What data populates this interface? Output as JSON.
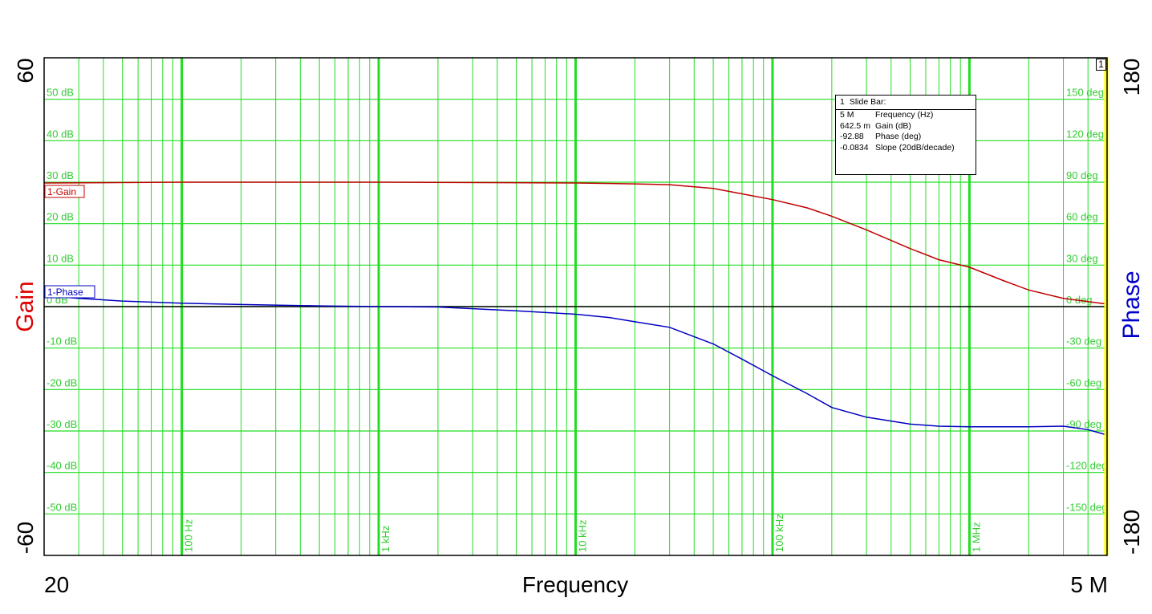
{
  "chart_data": {
    "type": "line",
    "x_axis": {
      "label": "Frequency",
      "scale": "log",
      "range": [
        20,
        5000000
      ],
      "min_label": "20",
      "max_label": "5 M",
      "decade_labels": [
        {
          "x": 100,
          "text": "100 Hz"
        },
        {
          "x": 1000,
          "text": "1 kHz"
        },
        {
          "x": 10000,
          "text": "10 kHz"
        },
        {
          "x": 100000,
          "text": "100 kHz"
        },
        {
          "x": 1000000,
          "text": "1 MHz"
        }
      ]
    },
    "y_left": {
      "label": "Gain",
      "range": [
        -60,
        60
      ],
      "max_label": "60",
      "min_label": "-60",
      "ticks": [
        {
          "y": 50,
          "text": "50 dB"
        },
        {
          "y": 40,
          "text": "40 dB"
        },
        {
          "y": 30,
          "text": "30 dB"
        },
        {
          "y": 20,
          "text": "20 dB"
        },
        {
          "y": 10,
          "text": "10 dB"
        },
        {
          "y": 0,
          "text": "0 dB"
        },
        {
          "y": -10,
          "text": "-10 dB"
        },
        {
          "y": -20,
          "text": "-20 dB"
        },
        {
          "y": -30,
          "text": "-30 dB"
        },
        {
          "y": -40,
          "text": "-40 dB"
        },
        {
          "y": -50,
          "text": "-50 dB"
        }
      ]
    },
    "y_right": {
      "label": "Phase",
      "range": [
        -180,
        180
      ],
      "max_label": "180",
      "min_label": "-180",
      "ticks": [
        {
          "y": 150,
          "text": "150 deg"
        },
        {
          "y": 120,
          "text": "120 deg"
        },
        {
          "y": 90,
          "text": "90 deg"
        },
        {
          "y": 60,
          "text": "60 deg"
        },
        {
          "y": 30,
          "text": "30 deg"
        },
        {
          "y": 0,
          "text": "0 deg"
        },
        {
          "y": -30,
          "text": "-30 deg"
        },
        {
          "y": -60,
          "text": "-60 deg"
        },
        {
          "y": -90,
          "text": "-90 deg"
        },
        {
          "y": -120,
          "text": "-120 deg"
        },
        {
          "y": -150,
          "text": "-150 deg"
        }
      ]
    },
    "grid": true,
    "series": [
      {
        "name": "1-Gain",
        "axis": "left",
        "color": "#c00000",
        "points": [
          [
            20,
            29.8
          ],
          [
            100,
            30.0
          ],
          [
            1000,
            30.0
          ],
          [
            10000,
            29.8
          ],
          [
            20000,
            29.6
          ],
          [
            30000,
            29.4
          ],
          [
            50000,
            28.5
          ],
          [
            70000,
            27.2
          ],
          [
            100000,
            25.8
          ],
          [
            150000,
            23.8
          ],
          [
            200000,
            21.8
          ],
          [
            300000,
            18.5
          ],
          [
            500000,
            14.0
          ],
          [
            700000,
            11.3
          ],
          [
            1000000,
            9.5
          ],
          [
            1500000,
            6.2
          ],
          [
            2000000,
            4.0
          ],
          [
            3000000,
            2.0
          ],
          [
            5000000,
            0.6
          ]
        ]
      },
      {
        "name": "1-Phase",
        "axis": "right",
        "color": "#0000c0",
        "points": [
          [
            20,
            8
          ],
          [
            30,
            6
          ],
          [
            50,
            4
          ],
          [
            100,
            2.5
          ],
          [
            200,
            1.5
          ],
          [
            500,
            0.5
          ],
          [
            1000,
            0
          ],
          [
            2000,
            -0.3
          ],
          [
            3000,
            -1.5
          ],
          [
            5000,
            -3
          ],
          [
            10000,
            -5.5
          ],
          [
            15000,
            -8
          ],
          [
            20000,
            -11
          ],
          [
            30000,
            -15
          ],
          [
            50000,
            -27
          ],
          [
            70000,
            -38
          ],
          [
            100000,
            -50
          ],
          [
            150000,
            -63
          ],
          [
            200000,
            -73
          ],
          [
            300000,
            -80
          ],
          [
            500000,
            -85
          ],
          [
            700000,
            -86.5
          ],
          [
            1000000,
            -87
          ],
          [
            1500000,
            -87
          ],
          [
            2000000,
            -87
          ],
          [
            3000000,
            -86.5
          ],
          [
            4000000,
            -89
          ],
          [
            5000000,
            -92.9
          ]
        ]
      }
    ]
  },
  "slide_bar": {
    "index": "1",
    "title": "Slide Bar:",
    "rows": [
      {
        "value": "5 M",
        "label": "Frequency (Hz)"
      },
      {
        "value": "642.5 m",
        "label": "Gain (dB)"
      },
      {
        "value": "-92.88",
        "label": "Phase (deg)"
      },
      {
        "value": "-0.0834",
        "label": "Slope (20dB/decade)"
      }
    ]
  },
  "marker_flag": "1",
  "colors": {
    "grid": "#22dd22",
    "grid_label": "#33cc33",
    "gain": "#c00000",
    "phase": "#0000c0",
    "cursor": "#ffff00"
  }
}
